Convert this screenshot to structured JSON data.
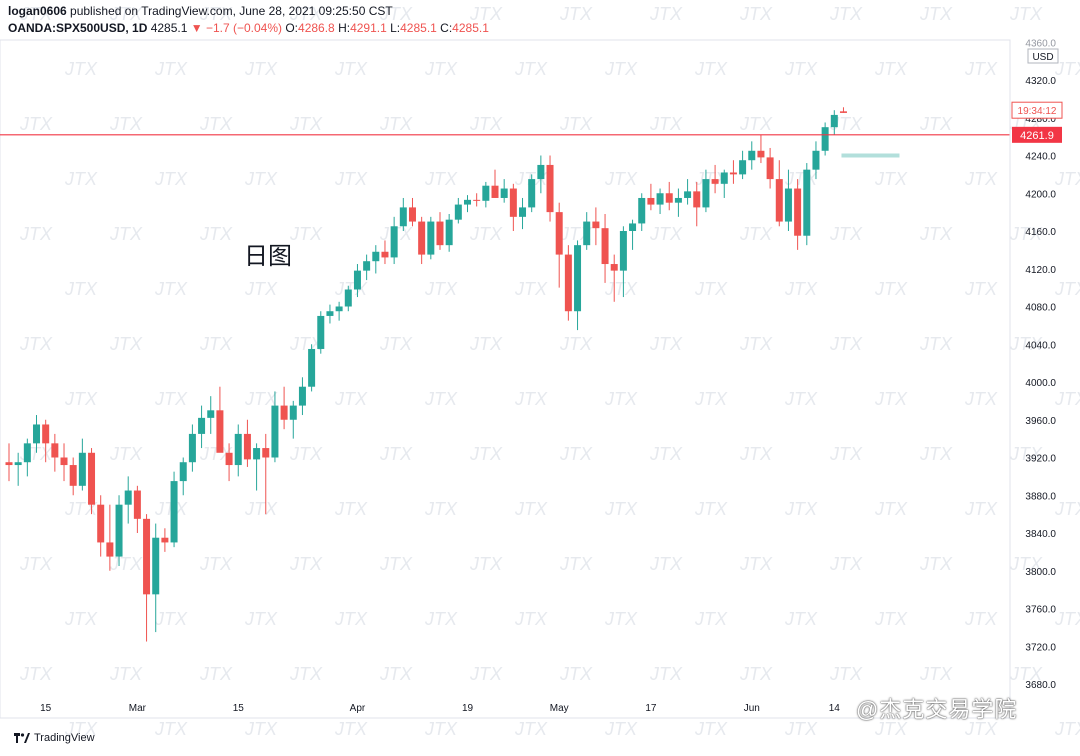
{
  "header": {
    "user": "logan0606",
    "published_text": " published on TradingView.com, June 28, 2021 09:25:50 CST",
    "symbol": "OANDA:SPX500USD, 1D",
    "last": " 4285.1 ",
    "change": "▼ −1.7 (−0.04%)",
    "o_label": " O:",
    "o_val": "4286.8",
    "h_label": " H:",
    "h_val": "4291.1",
    "l_label": " L:",
    "l_val": "4285.1",
    "c_label": " C:",
    "c_val": "4285.1"
  },
  "annotation": "日图",
  "footer": {
    "brand": "TradingView"
  },
  "brand_watermark": "@杰克交易学院",
  "watermark_text": "JTX",
  "colors": {
    "up": "#26a69a",
    "down": "#ef5350",
    "line": "#f23645",
    "grid": "#f0f3fa",
    "axis_text": "#131722"
  },
  "chart_data": {
    "type": "candlestick",
    "currency": "USD",
    "ylim": [
      3680,
      4350
    ],
    "y_ticks": [
      3680,
      3720,
      3760,
      3800,
      3840,
      3880,
      3920,
      3960,
      4000,
      4040,
      4080,
      4120,
      4160,
      4200,
      4240,
      4280,
      4320
    ],
    "y_top_partial": "4360.0",
    "y_tick_labels": [
      "3680.0",
      "3720.0",
      "3760.0",
      "3800.0",
      "3840.0",
      "3880.0",
      "3920.0",
      "3960.0",
      "4000.0",
      "4040.0",
      "4080.0",
      "4120.0",
      "4160.0",
      "4200.0",
      "4240.0",
      "4280.0",
      "4320.0"
    ],
    "x_tick_labels": [
      {
        "label": "15",
        "bar": 4
      },
      {
        "label": "Mar",
        "bar": 14
      },
      {
        "label": "15",
        "bar": 25
      },
      {
        "label": "Apr",
        "bar": 38
      },
      {
        "label": "19",
        "bar": 50
      },
      {
        "label": "May",
        "bar": 60
      },
      {
        "label": "17",
        "bar": 70
      },
      {
        "label": "Jun",
        "bar": 81
      },
      {
        "label": "14",
        "bar": 90
      }
    ],
    "price_line": {
      "value": 4261.9,
      "label": "4261.9"
    },
    "countdown_label": "19:34:12",
    "current_price": 4285.1,
    "candles": [
      [
        3915,
        3935,
        3895,
        3912
      ],
      [
        3912,
        3925,
        3890,
        3915
      ],
      [
        3915,
        3940,
        3900,
        3935
      ],
      [
        3935,
        3965,
        3925,
        3955
      ],
      [
        3955,
        3960,
        3915,
        3935
      ],
      [
        3935,
        3945,
        3905,
        3920
      ],
      [
        3920,
        3935,
        3895,
        3912
      ],
      [
        3912,
        3920,
        3880,
        3890
      ],
      [
        3890,
        3940,
        3885,
        3925
      ],
      [
        3925,
        3930,
        3860,
        3870
      ],
      [
        3870,
        3880,
        3815,
        3830
      ],
      [
        3830,
        3870,
        3800,
        3815
      ],
      [
        3815,
        3880,
        3805,
        3870
      ],
      [
        3870,
        3900,
        3850,
        3885
      ],
      [
        3885,
        3890,
        3840,
        3855
      ],
      [
        3855,
        3860,
        3725,
        3775
      ],
      [
        3775,
        3850,
        3735,
        3835
      ],
      [
        3835,
        3845,
        3820,
        3830
      ],
      [
        3830,
        3905,
        3825,
        3895
      ],
      [
        3895,
        3920,
        3880,
        3915
      ],
      [
        3915,
        3955,
        3905,
        3945
      ],
      [
        3945,
        3975,
        3930,
        3962
      ],
      [
        3962,
        3985,
        3945,
        3970
      ],
      [
        3970,
        3995,
        3930,
        3925
      ],
      [
        3925,
        3935,
        3895,
        3912
      ],
      [
        3912,
        3955,
        3900,
        3945
      ],
      [
        3945,
        3960,
        3910,
        3918
      ],
      [
        3918,
        3935,
        3885,
        3930
      ],
      [
        3930,
        3945,
        3860,
        3920
      ],
      [
        3920,
        3990,
        3915,
        3975
      ],
      [
        3975,
        3995,
        3950,
        3960
      ],
      [
        3960,
        3980,
        3940,
        3975
      ],
      [
        3975,
        4005,
        3965,
        3995
      ],
      [
        3995,
        4040,
        3990,
        4035
      ],
      [
        4035,
        4075,
        4030,
        4070
      ],
      [
        4070,
        4082,
        4062,
        4075
      ],
      [
        4075,
        4085,
        4065,
        4080
      ],
      [
        4080,
        4102,
        4075,
        4098
      ],
      [
        4098,
        4125,
        4090,
        4118
      ],
      [
        4118,
        4135,
        4108,
        4128
      ],
      [
        4128,
        4145,
        4115,
        4138
      ],
      [
        4138,
        4150,
        4125,
        4132
      ],
      [
        4132,
        4175,
        4125,
        4165
      ],
      [
        4165,
        4195,
        4160,
        4185
      ],
      [
        4185,
        4195,
        4165,
        4170
      ],
      [
        4170,
        4175,
        4125,
        4135
      ],
      [
        4135,
        4175,
        4130,
        4170
      ],
      [
        4170,
        4180,
        4140,
        4145
      ],
      [
        4145,
        4178,
        4138,
        4172
      ],
      [
        4172,
        4195,
        4168,
        4188
      ],
      [
        4188,
        4198,
        4180,
        4193
      ],
      [
        4193,
        4200,
        4186,
        4192
      ],
      [
        4192,
        4212,
        4185,
        4208
      ],
      [
        4208,
        4225,
        4195,
        4195
      ],
      [
        4195,
        4215,
        4190,
        4205
      ],
      [
        4205,
        4210,
        4160,
        4175
      ],
      [
        4175,
        4195,
        4162,
        4185
      ],
      [
        4185,
        4220,
        4180,
        4215
      ],
      [
        4215,
        4240,
        4200,
        4230
      ],
      [
        4230,
        4240,
        4170,
        4180
      ],
      [
        4180,
        4190,
        4100,
        4135
      ],
      [
        4135,
        4145,
        4065,
        4075
      ],
      [
        4075,
        4150,
        4055,
        4145
      ],
      [
        4145,
        4180,
        4140,
        4170
      ],
      [
        4170,
        4185,
        4145,
        4163
      ],
      [
        4163,
        4178,
        4105,
        4125
      ],
      [
        4125,
        4135,
        4085,
        4118
      ],
      [
        4118,
        4165,
        4090,
        4160
      ],
      [
        4160,
        4172,
        4140,
        4168
      ],
      [
        4168,
        4200,
        4160,
        4195
      ],
      [
        4195,
        4210,
        4182,
        4188
      ],
      [
        4188,
        4205,
        4178,
        4200
      ],
      [
        4200,
        4212,
        4182,
        4190
      ],
      [
        4190,
        4205,
        4175,
        4195
      ],
      [
        4195,
        4215,
        4188,
        4202
      ],
      [
        4202,
        4212,
        4165,
        4185
      ],
      [
        4185,
        4225,
        4180,
        4215
      ],
      [
        4215,
        4230,
        4200,
        4210
      ],
      [
        4210,
        4225,
        4195,
        4222
      ],
      [
        4222,
        4235,
        4210,
        4220
      ],
      [
        4220,
        4245,
        4215,
        4235
      ],
      [
        4235,
        4255,
        4225,
        4245
      ],
      [
        4245,
        4262,
        4232,
        4238
      ],
      [
        4238,
        4248,
        4205,
        4215
      ],
      [
        4215,
        4235,
        4165,
        4170
      ],
      [
        4170,
        4225,
        4160,
        4205
      ],
      [
        4205,
        4215,
        4140,
        4155
      ],
      [
        4155,
        4232,
        4145,
        4225
      ],
      [
        4225,
        4255,
        4215,
        4245
      ],
      [
        4245,
        4275,
        4240,
        4270
      ],
      [
        4270,
        4288,
        4262,
        4283
      ],
      [
        4286.8,
        4291.1,
        4285.1,
        4285.1
      ]
    ]
  }
}
